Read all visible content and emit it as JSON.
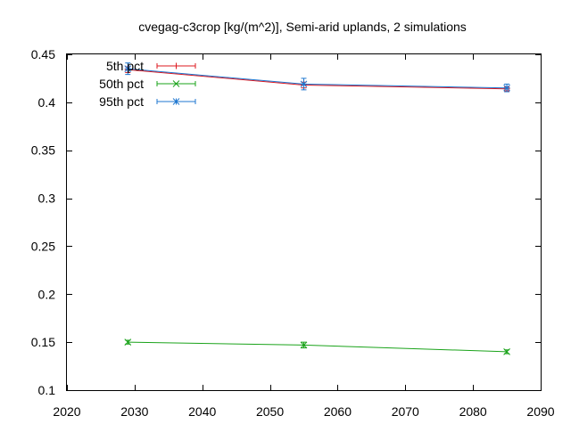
{
  "chart_data": {
    "type": "line",
    "title": "cvegag-c3crop [kg/(m^2)], Semi-arid uplands, 2 simulations",
    "xlabel": "",
    "ylabel": "",
    "xlim": [
      2020,
      2090
    ],
    "ylim": [
      0.1,
      0.45
    ],
    "xticks": [
      2020,
      2030,
      2040,
      2050,
      2060,
      2070,
      2080,
      2090
    ],
    "yticks": [
      0.1,
      0.15,
      0.2,
      0.25,
      0.3,
      0.35,
      0.4,
      0.45
    ],
    "legend_position": "top-left",
    "grid": false,
    "series": [
      {
        "name": "5th pct",
        "color": "#dd181f",
        "marker": "plus",
        "x": [
          2029,
          2055,
          2085
        ],
        "y": [
          0.434,
          0.418,
          0.414
        ],
        "err": [
          0.003,
          0.003,
          0.002
        ]
      },
      {
        "name": "50th pct",
        "color": "#1aa31a",
        "marker": "cross",
        "x": [
          2029,
          2055,
          2085
        ],
        "y": [
          0.15,
          0.147,
          0.14
        ],
        "err": [
          0.002,
          0.003,
          0.002
        ]
      },
      {
        "name": "95th pct",
        "color": "#1f77d0",
        "marker": "star",
        "x": [
          2029,
          2055,
          2085
        ],
        "y": [
          0.435,
          0.419,
          0.415
        ],
        "err": [
          0.006,
          0.006,
          0.004
        ]
      }
    ]
  }
}
